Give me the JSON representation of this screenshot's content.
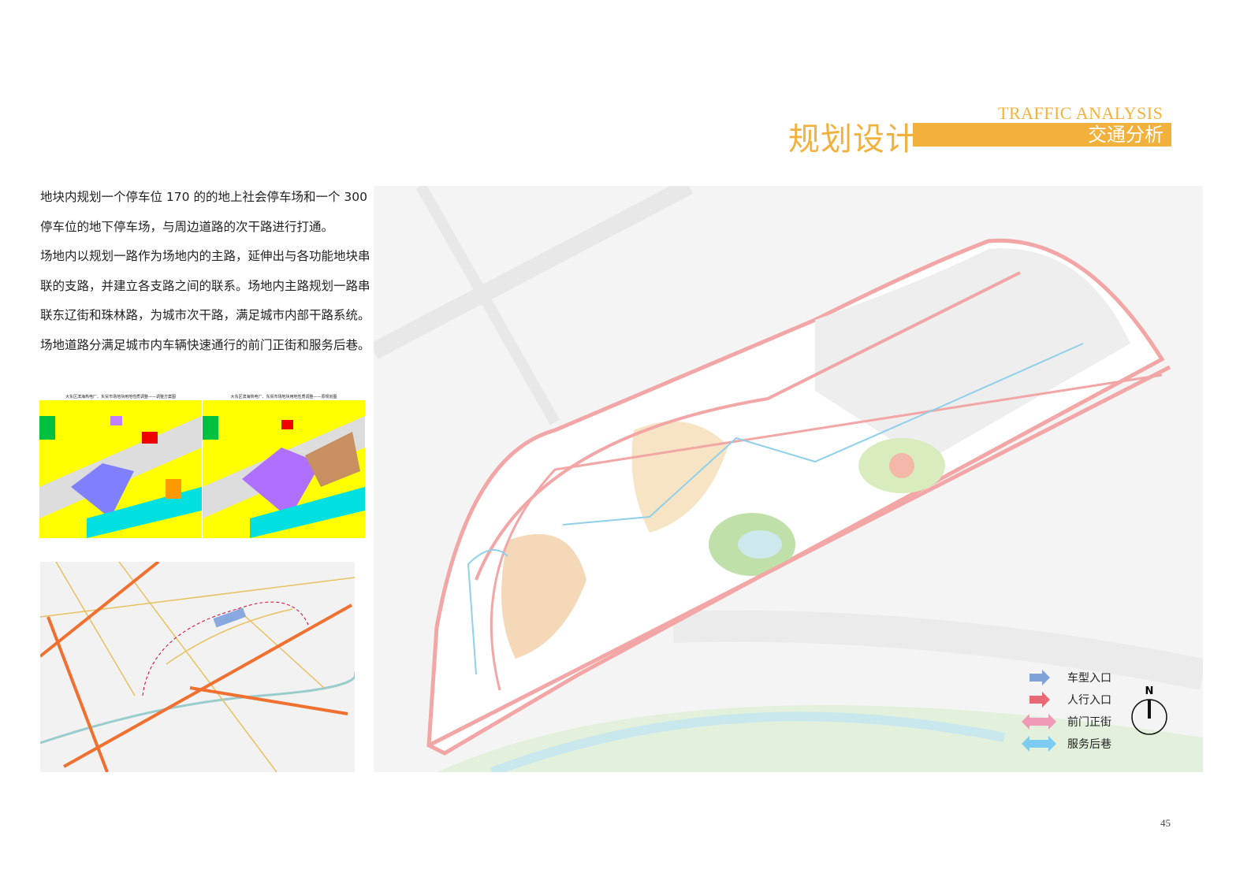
{
  "header": {
    "title": "规划设计",
    "subtitle_en": "TRAFFIC ANALYSIS",
    "subtitle_cn": "交通分析",
    "accent": "#f2b13c"
  },
  "body": {
    "paragraphs": [
      "地块内规划一个停车位 170 的的地上社会停车场和一个 300 停车位的地下停车场，与周边道路的次干路进行打通。",
      "场地内以规划一路作为场地内的主路，延伸出与各功能地块串联的支路，并建立各支路之间的联系。场地内主路规划一路串联东辽街和珠林路，为城市次干路，满足城市内部干路系统。",
      "场地道路分满足城市内车辆快速通行的前门正街和服务后巷。"
    ]
  },
  "thumbnails": {
    "left_title": "大东区滨海热电厂、东贸市场地块用地性质调整——调整方案图",
    "right_title": "大东区滨海热电厂、东贸市场地块用地性质调整——原规划图"
  },
  "legend": {
    "items": [
      {
        "label": "车型入口",
        "color": "#7fa3d9",
        "icon": "arrow-right"
      },
      {
        "label": "人行入口",
        "color": "#e96a74",
        "icon": "arrow-right"
      },
      {
        "label": "前门正街",
        "color": "#f19ab8",
        "icon": "double-arrow"
      },
      {
        "label": "服务后巷",
        "color": "#7ccbf0",
        "icon": "double-arrow"
      }
    ]
  },
  "compass": {
    "label": "N"
  },
  "page_number": "45"
}
